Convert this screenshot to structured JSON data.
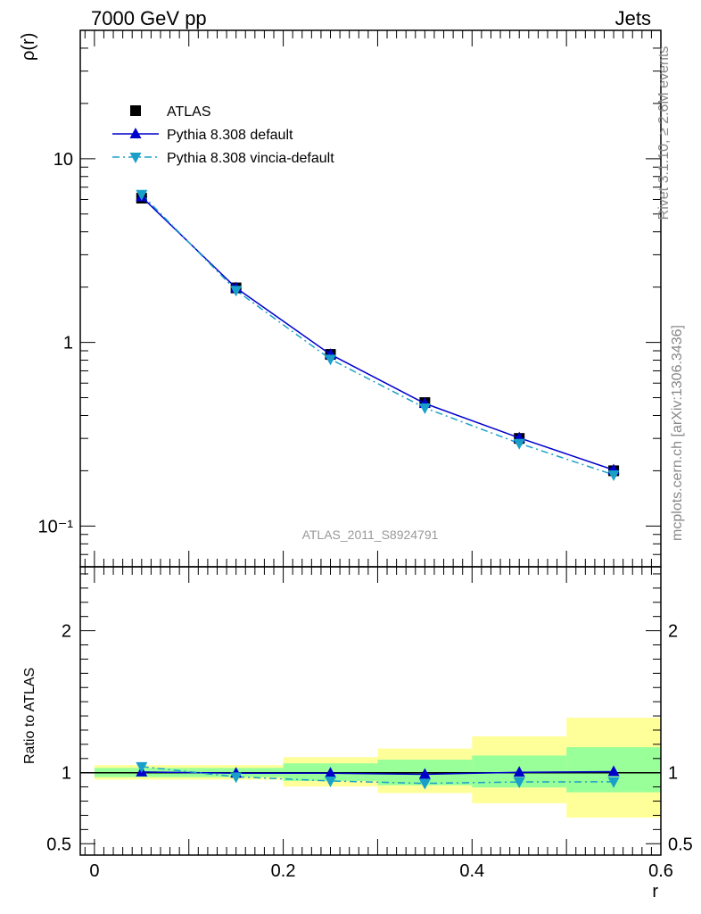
{
  "header": {
    "left": "7000 GeV pp",
    "right": "Jets"
  },
  "side_labels": {
    "top": "Rivet 3.1.10, ≥ 2.6M events",
    "bottom": "mcplots.cern.ch [arXiv:1306.3436]"
  },
  "watermark": "ATLAS_2011_S8924791",
  "colors": {
    "data": "#000000",
    "default": "#0000cc",
    "vincia": "#1aa0c8",
    "band_outer": "#ffff99",
    "band_inner": "#99ff99"
  },
  "chart_data": [
    {
      "type": "scatter",
      "panel": "main",
      "ylabel": "ρ(r)",
      "yscale": "log",
      "ylim": [
        0.06,
        50
      ],
      "xlim": [
        -0.015,
        0.6
      ],
      "y_ticks": [
        {
          "value": 10,
          "label": "10"
        },
        {
          "value": 1,
          "label": "1"
        },
        {
          "value": 0.1,
          "label": "10⁻¹"
        }
      ],
      "x": [
        0.05,
        0.15,
        0.25,
        0.35,
        0.45,
        0.55
      ],
      "legend_position": "top-left",
      "series": [
        {
          "name": "ATLAS",
          "style": "marker",
          "marker": "square",
          "values": [
            6.1,
            1.98,
            0.86,
            0.47,
            0.3,
            0.2
          ]
        },
        {
          "name": "Pythia 8.308 default",
          "style": "solid",
          "marker": "triangle-up",
          "values": [
            6.2,
            1.98,
            0.86,
            0.465,
            0.302,
            0.202
          ]
        },
        {
          "name": "Pythia 8.308 vincia-default",
          "style": "dashdot",
          "marker": "triangle-down",
          "values": [
            6.4,
            1.92,
            0.81,
            0.44,
            0.282,
            0.19
          ]
        }
      ]
    },
    {
      "type": "line",
      "panel": "ratio",
      "ylabel": "Ratio to ATLAS",
      "xlabel": "r",
      "ylim": [
        0.42,
        2.45
      ],
      "xlim": [
        -0.015,
        0.6
      ],
      "x_ticks": [
        "0",
        "0.2",
        "0.4",
        "0.6"
      ],
      "y_ticks": [
        "0.5",
        "1",
        "2"
      ],
      "x": [
        0.05,
        0.15,
        0.25,
        0.35,
        0.45,
        0.55
      ],
      "bands": {
        "edges": [
          0.0,
          0.1,
          0.2,
          0.3,
          0.4,
          0.5,
          0.6
        ],
        "outer": [
          [
            0.951,
            1.054
          ],
          [
            0.951,
            1.054
          ],
          [
            0.903,
            1.11
          ],
          [
            0.857,
            1.17
          ],
          [
            0.785,
            1.256
          ],
          [
            0.684,
            1.387
          ]
        ],
        "inner": [
          [
            0.969,
            1.034
          ],
          [
            0.969,
            1.034
          ],
          [
            0.942,
            1.066
          ],
          [
            0.912,
            1.092
          ],
          [
            0.896,
            1.121
          ],
          [
            0.862,
            1.18
          ]
        ]
      },
      "series": [
        {
          "name": "Pythia 8.308 default",
          "style": "solid",
          "marker": "triangle-up",
          "values": [
            1.005,
            0.997,
            0.997,
            0.989,
            1.003,
            1.008
          ]
        },
        {
          "name": "Pythia 8.308 vincia-default",
          "style": "dashdot",
          "marker": "triangle-down",
          "values": [
            1.043,
            0.971,
            0.942,
            0.925,
            0.935,
            0.936
          ]
        }
      ]
    }
  ]
}
